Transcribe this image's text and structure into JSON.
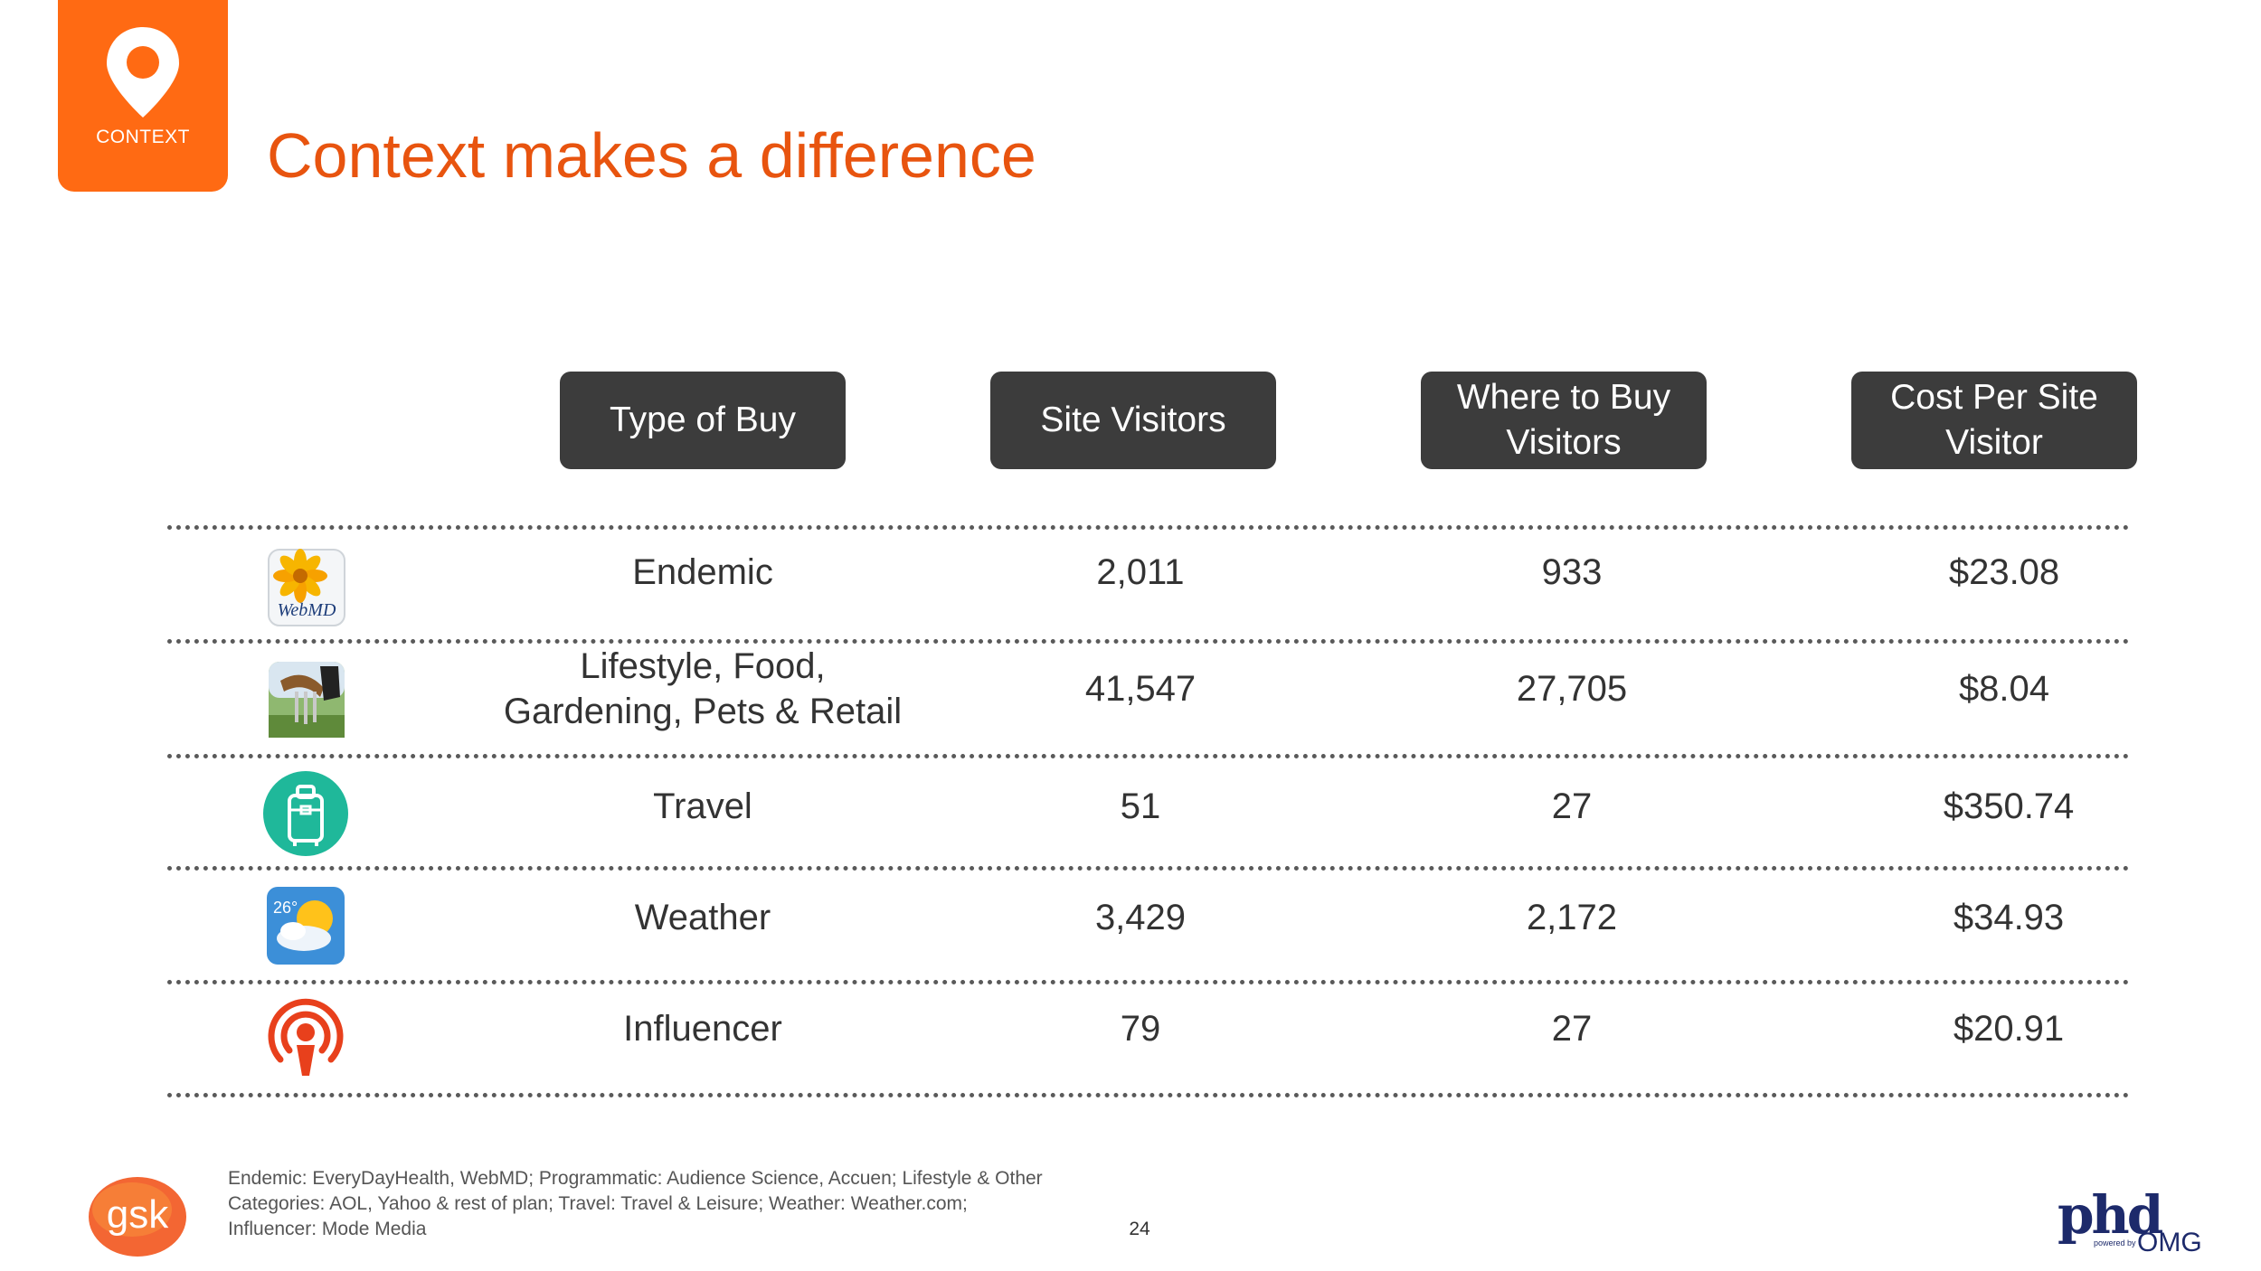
{
  "badge": {
    "label": "CONTEXT",
    "icon": "map-pin-icon",
    "color": "#ff6a13"
  },
  "title": "Context makes a difference",
  "table": {
    "headers": [
      "Type of Buy",
      "Site Visitors",
      "Where to Buy Visitors",
      "Cost Per Site Visitor"
    ],
    "rows": [
      {
        "icon": "webmd-icon",
        "icon_text": "WebMD",
        "type": "Endemic",
        "site_visitors": "2,011",
        "where_to_buy": "933",
        "cost": "$23.08"
      },
      {
        "icon": "gardening-icon",
        "type_line1": "Lifestyle, Food,",
        "type_line2": "Gardening, Pets & Retail",
        "site_visitors": "41,547",
        "where_to_buy": "27,705",
        "cost": "$8.04"
      },
      {
        "icon": "luggage-icon",
        "type": "Travel",
        "site_visitors": "51",
        "where_to_buy": "27",
        "cost": "$350.74"
      },
      {
        "icon": "weather-icon",
        "icon_text": "26°",
        "type": "Weather",
        "site_visitors": "3,429",
        "where_to_buy": "2,172",
        "cost": "$34.93"
      },
      {
        "icon": "podcast-icon",
        "type": "Influencer",
        "site_visitors": "79",
        "where_to_buy": "27",
        "cost": "$20.91"
      }
    ]
  },
  "footnote": {
    "line1": "Endemic: EveryDayHealth, WebMD; Programmatic: Audience Science, Accuen; Lifestyle & Other",
    "line2": "Categories: AOL, Yahoo & rest of plan; Travel: Travel & Leisure; Weather: Weather.com;",
    "line3": "Influencer: Mode Media"
  },
  "page_number": "24",
  "logos": {
    "left": "gsk",
    "right_main": "phd",
    "right_powered": "powered by",
    "right_sub": "OMG"
  },
  "colors": {
    "accent": "#ff6a13",
    "title": "#e8540f",
    "header_bg": "#3c3c3c"
  }
}
